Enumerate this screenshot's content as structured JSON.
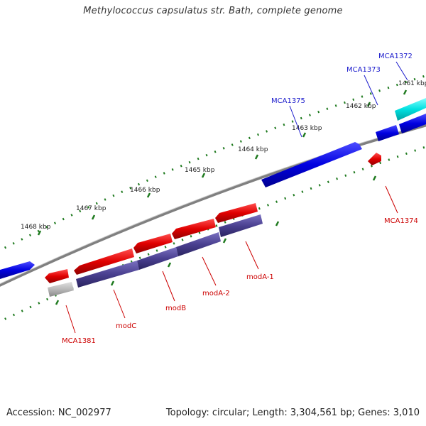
{
  "title": "Methylococcus capsulatus str. Bath, complete genome",
  "footer": {
    "accession": "Accession: NC_002977",
    "summary": "Topology: circular; Length: 3,304,561 bp; Genes: 3,010"
  },
  "ruler": [
    "1461 kbp",
    "1462 kbp",
    "1463 kbp",
    "1464 kbp",
    "1465 kbp",
    "1466 kbp",
    "1467 kbp",
    "1468 kbp"
  ],
  "genes": {
    "forward": [
      "MCA1372",
      "MCA1373",
      "MCA1375"
    ],
    "reverse": [
      "MCA1374",
      "MCA1381",
      "modC",
      "modB",
      "modA-2",
      "modA-1"
    ]
  },
  "colors": {
    "forward_gene": "#0000e0",
    "highlight_gene": "#00e0e0",
    "reverse_gene": "#e00000",
    "cds_band": "#4a4090",
    "rna_gene": "#b8b8b8",
    "backbone": "#808080",
    "tick_green": "#1f7a1f",
    "label_blue": "#1a1acc",
    "label_red": "#cc0000"
  }
}
